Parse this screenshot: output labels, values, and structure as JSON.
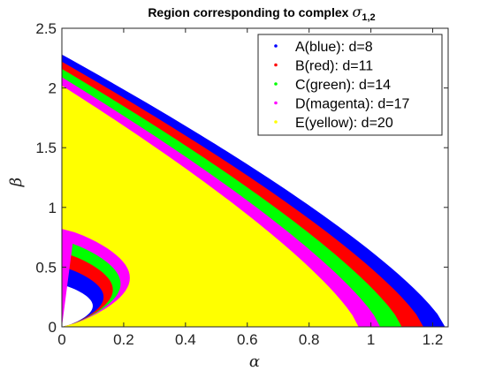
{
  "chart_data": {
    "type": "area",
    "title": "Region corresponding to complex",
    "title_symbol": "σ",
    "title_subscript": "1,2",
    "xlabel": "α",
    "ylabel": "β",
    "xlim": [
      0,
      1.25
    ],
    "ylim": [
      0,
      2.5
    ],
    "xticks": [
      "0",
      "0.2",
      "0.4",
      "0.6",
      "0.8",
      "1",
      "1.2"
    ],
    "yticks": [
      "0",
      "0.5",
      "1",
      "1.5",
      "2",
      "2.5"
    ],
    "grid": false,
    "legend_position": "top-right",
    "series": [
      {
        "name": "A(blue): d=8",
        "color": "#0000ff",
        "outer_curve": {
          "beta_at_alpha0": 2.28,
          "alpha_at_beta0": 1.24
        },
        "inner_lobe": {
          "beta_top": 0.35,
          "alpha_max": 0.1
        }
      },
      {
        "name": "B(red): d=11",
        "color": "#ff0000",
        "outer_curve": {
          "beta_at_alpha0": 2.22,
          "alpha_at_beta0": 1.17
        },
        "inner_lobe": {
          "beta_top": 0.5,
          "alpha_max": 0.135
        }
      },
      {
        "name": "C(green): d=14",
        "color": "#00ff00",
        "outer_curve": {
          "beta_at_alpha0": 2.16,
          "alpha_at_beta0": 1.1
        },
        "inner_lobe": {
          "beta_top": 0.62,
          "alpha_max": 0.165
        }
      },
      {
        "name": "D(magenta): d=17",
        "color": "#ff00ff",
        "outer_curve": {
          "beta_at_alpha0": 2.09,
          "alpha_at_beta0": 1.03
        },
        "inner_lobe": {
          "beta_top": 0.72,
          "alpha_max": 0.19
        }
      },
      {
        "name": "E(yellow): d=20",
        "color": "#ffff00",
        "outer_curve": {
          "beta_at_alpha0": 2.02,
          "alpha_at_beta0": 0.96
        },
        "inner_lobe": {
          "beta_top": 0.82,
          "alpha_max": 0.22
        }
      }
    ]
  }
}
